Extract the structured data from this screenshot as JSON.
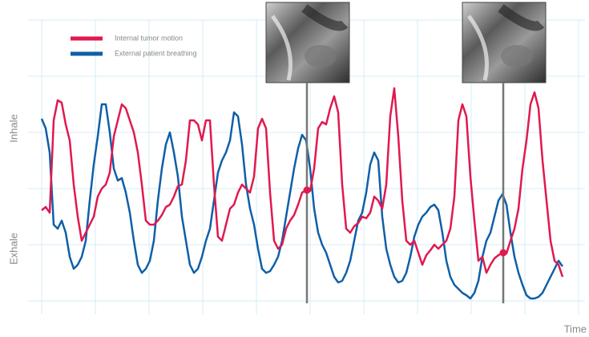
{
  "chart_data": {
    "type": "line",
    "y_label_top": "Inhale",
    "y_label_bottom": "Exhale",
    "x_label": "Time",
    "x": [
      0,
      1,
      2,
      3,
      4,
      5,
      6,
      7,
      8,
      9,
      10,
      11,
      12,
      13,
      14,
      15,
      16,
      17,
      18,
      19,
      20,
      21,
      22,
      23,
      24,
      25,
      26,
      27,
      28,
      29,
      30,
      31,
      32,
      33,
      34,
      35,
      36,
      37,
      38,
      39,
      40,
      41,
      42,
      43,
      44,
      45,
      46,
      47,
      48,
      49,
      50,
      51,
      52,
      53,
      54,
      55,
      56,
      57,
      58,
      59,
      60,
      61,
      62,
      63,
      64,
      65,
      66,
      67,
      68,
      69,
      70,
      71,
      72,
      73,
      74,
      75,
      76,
      77,
      78,
      79,
      80,
      81,
      82,
      83,
      84,
      85,
      86,
      87,
      88,
      89,
      90,
      91,
      92,
      93,
      94,
      95,
      96,
      97,
      98,
      99,
      100,
      101,
      102,
      103,
      104,
      105,
      106,
      107,
      108,
      109,
      110,
      111,
      112,
      113,
      114,
      115,
      116,
      117,
      118,
      119,
      120,
      121,
      122,
      123,
      124,
      125,
      126,
      127,
      128,
      129,
      130
    ],
    "series": [
      {
        "name": "Internal tumor motion",
        "color": "#e0194f",
        "values": [
          113,
          117,
          110,
          225,
          250,
          247,
          220,
          200,
          145,
          105,
          75,
          85,
          95,
          105,
          130,
          140,
          145,
          160,
          205,
          225,
          245,
          240,
          225,
          210,
          185,
          145,
          100,
          95,
          95,
          100,
          107,
          117,
          120,
          130,
          143,
          145,
          175,
          225,
          225,
          220,
          200,
          225,
          225,
          145,
          80,
          75,
          95,
          115,
          120,
          135,
          145,
          140,
          135,
          155,
          215,
          227,
          215,
          135,
          75,
          65,
          70,
          90,
          100,
          107,
          120,
          135,
          138,
          137,
          165,
          215,
          223,
          220,
          240,
          255,
          235,
          145,
          90,
          85,
          93,
          97,
          105,
          103,
          110,
          130,
          125,
          115,
          145,
          230,
          265,
          205,
          125,
          75,
          70,
          75,
          60,
          45,
          57,
          63,
          70,
          65,
          70,
          75,
          90,
          130,
          225,
          245,
          230,
          155,
          100,
          50,
          55,
          35,
          45,
          53,
          57,
          60,
          59,
          75,
          90,
          115,
          165,
          200,
          245,
          260,
          240,
          175,
          125,
          75,
          50,
          45,
          30
        ]
      },
      {
        "name": "External patient breathing",
        "color": "#0f5fa8",
        "values": [
          227,
          215,
          185,
          95,
          90,
          100,
          85,
          55,
          40,
          45,
          55,
          75,
          125,
          170,
          205,
          245,
          245,
          210,
          165,
          150,
          153,
          135,
          110,
          75,
          45,
          35,
          40,
          50,
          75,
          125,
          165,
          195,
          210,
          185,
          155,
          105,
          75,
          45,
          35,
          40,
          55,
          75,
          90,
          125,
          160,
          175,
          185,
          200,
          235,
          230,
          195,
          145,
          115,
          95,
          65,
          40,
          35,
          37,
          45,
          55,
          75,
          105,
          135,
          165,
          190,
          207,
          200,
          165,
          115,
          85,
          70,
          60,
          45,
          30,
          23,
          25,
          35,
          50,
          75,
          100,
          110,
          135,
          170,
          185,
          175,
          105,
          65,
          45,
          30,
          23,
          25,
          35,
          55,
          80,
          95,
          105,
          110,
          117,
          120,
          113,
          85,
          50,
          30,
          20,
          15,
          10,
          7,
          3,
          10,
          25,
          55,
          75,
          85,
          105,
          125,
          133,
          120,
          85,
          55,
          35,
          20,
          7,
          3,
          3,
          5,
          10,
          20,
          30,
          40,
          50,
          43
        ]
      }
    ],
    "markers": [
      {
        "x": 66.2,
        "y": 138
      },
      {
        "x": 115.2,
        "y": 60
      }
    ],
    "marker_color": "#e0194f",
    "xlim": [
      0,
      134
    ],
    "xticks": [
      0,
      13.4,
      26.8,
      40.2,
      53.6,
      67,
      80.4,
      93.8,
      107.2,
      120.6,
      134
    ],
    "ylim": [
      0,
      350
    ],
    "yticks": [
      0,
      70,
      140,
      210,
      280,
      350
    ],
    "grid": true
  }
}
